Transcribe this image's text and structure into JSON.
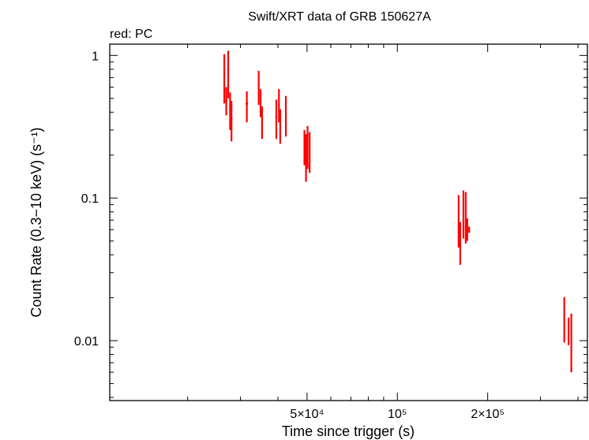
{
  "chart_data": {
    "type": "scatter",
    "title": "Swift/XRT data of GRB 150627A",
    "subtitle": "red: PC",
    "xlabel": "Time since trigger (s)",
    "ylabel": "Count Rate (0.3−10 keV) (s⁻¹)",
    "xscale": "log",
    "yscale": "log",
    "xlim": [
      11000,
      430000
    ],
    "ylim": [
      0.0038,
      1.2
    ],
    "x_ticks": [
      {
        "value": 50000,
        "label": "5×10⁴"
      },
      {
        "value": 100000,
        "label": "10⁵"
      },
      {
        "value": 200000,
        "label": "2×10⁵"
      }
    ],
    "y_ticks": [
      {
        "value": 1,
        "label": "1"
      },
      {
        "value": 0.1,
        "label": "0.1"
      },
      {
        "value": 0.01,
        "label": "0.01"
      }
    ],
    "grid": false,
    "series": [
      {
        "name": "PC",
        "color": "#ff0000",
        "points": [
          {
            "x": 26500,
            "xerr": 200,
            "y": 0.75,
            "ylo": 0.46,
            "yhi": 1.02
          },
          {
            "x": 26900,
            "xerr": 200,
            "y": 0.48,
            "ylo": 0.38,
            "yhi": 0.6
          },
          {
            "x": 27300,
            "xerr": 200,
            "y": 0.8,
            "ylo": 0.5,
            "yhi": 1.08
          },
          {
            "x": 27700,
            "xerr": 200,
            "y": 0.42,
            "ylo": 0.3,
            "yhi": 0.55
          },
          {
            "x": 28000,
            "xerr": 200,
            "y": 0.36,
            "ylo": 0.25,
            "yhi": 0.48
          },
          {
            "x": 31500,
            "xerr": 300,
            "y": 0.46,
            "ylo": 0.34,
            "yhi": 0.56
          },
          {
            "x": 34500,
            "xerr": 250,
            "y": 0.62,
            "ylo": 0.45,
            "yhi": 0.78
          },
          {
            "x": 35000,
            "xerr": 200,
            "y": 0.47,
            "ylo": 0.37,
            "yhi": 0.58
          },
          {
            "x": 35400,
            "xerr": 200,
            "y": 0.35,
            "ylo": 0.26,
            "yhi": 0.44
          },
          {
            "x": 39500,
            "xerr": 300,
            "y": 0.37,
            "ylo": 0.26,
            "yhi": 0.49
          },
          {
            "x": 40300,
            "xerr": 250,
            "y": 0.45,
            "ylo": 0.34,
            "yhi": 0.58
          },
          {
            "x": 40700,
            "xerr": 200,
            "y": 0.33,
            "ylo": 0.24,
            "yhi": 0.42
          },
          {
            "x": 42500,
            "xerr": 250,
            "y": 0.37,
            "ylo": 0.27,
            "yhi": 0.52
          },
          {
            "x": 49000,
            "xerr": 300,
            "y": 0.24,
            "ylo": 0.17,
            "yhi": 0.3
          },
          {
            "x": 49600,
            "xerr": 250,
            "y": 0.2,
            "ylo": 0.13,
            "yhi": 0.28
          },
          {
            "x": 50200,
            "xerr": 250,
            "y": 0.25,
            "ylo": 0.16,
            "yhi": 0.32
          },
          {
            "x": 51000,
            "xerr": 250,
            "y": 0.21,
            "ylo": 0.15,
            "yhi": 0.29
          },
          {
            "x": 160000,
            "xerr": 800,
            "y": 0.065,
            "ylo": 0.045,
            "yhi": 0.105
          },
          {
            "x": 162000,
            "xerr": 800,
            "y": 0.05,
            "ylo": 0.034,
            "yhi": 0.068
          },
          {
            "x": 166000,
            "xerr": 800,
            "y": 0.074,
            "ylo": 0.052,
            "yhi": 0.113
          },
          {
            "x": 169000,
            "xerr": 800,
            "y": 0.065,
            "ylo": 0.048,
            "yhi": 0.11
          },
          {
            "x": 171000,
            "xerr": 900,
            "y": 0.06,
            "ylo": 0.05,
            "yhi": 0.072
          },
          {
            "x": 173500,
            "xerr": 1000,
            "y": 0.06,
            "ylo": 0.057,
            "yhi": 0.063
          },
          {
            "x": 360000,
            "xerr": 1500,
            "y": 0.0125,
            "ylo": 0.0097,
            "yhi": 0.0202
          },
          {
            "x": 372000,
            "xerr": 1500,
            "y": 0.0115,
            "ylo": 0.0093,
            "yhi": 0.0145
          },
          {
            "x": 380000,
            "xerr": 1500,
            "y": 0.01,
            "ylo": 0.006,
            "yhi": 0.0155
          }
        ]
      }
    ]
  }
}
